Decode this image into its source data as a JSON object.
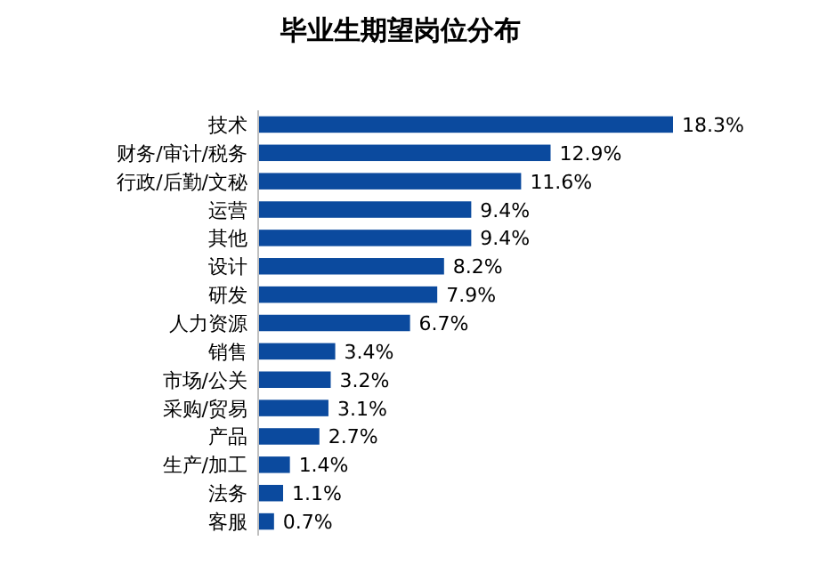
{
  "chart_data": {
    "type": "bar",
    "orientation": "horizontal",
    "title": "毕业生期望岗位分布",
    "categories": [
      "技术",
      "财务/审计/税务",
      "行政/后勤/文秘",
      "运营",
      "其他",
      "设计",
      "研发",
      "人力资源",
      "销售",
      "市场/公关",
      "采购/贸易",
      "产品",
      "生产/加工",
      "法务",
      "客服"
    ],
    "values": [
      18.3,
      12.9,
      11.6,
      9.4,
      9.4,
      8.2,
      7.9,
      6.7,
      3.4,
      3.2,
      3.1,
      2.7,
      1.4,
      1.1,
      0.7
    ],
    "value_labels": [
      "18.3%",
      "12.9%",
      "11.6%",
      "9.4%",
      "9.4%",
      "8.2%",
      "7.9%",
      "6.7%",
      "3.4%",
      "3.2%",
      "3.1%",
      "2.7%",
      "1.4%",
      "1.1%",
      "0.7%"
    ],
    "color": "#0b4a9e"
  }
}
